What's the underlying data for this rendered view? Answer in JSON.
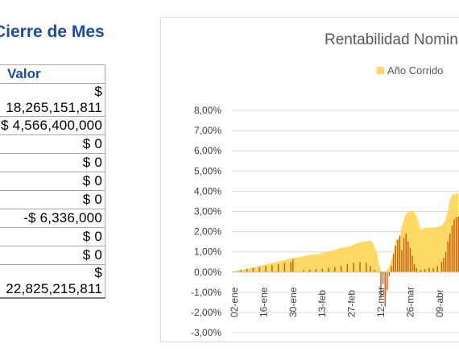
{
  "sheet": {
    "title": "Cierre de Mes",
    "table": {
      "header": "Valor",
      "rows": [
        "$ 18,265,151,811",
        "$ 4,566,400,000",
        "$ 0",
        "$ 0",
        "$ 0",
        "$ 0",
        "-$ 6,336,000",
        "$ 0",
        "$ 0",
        "$ 22,825,215,811"
      ]
    }
  },
  "chart_data": {
    "type": "area",
    "title": "Rentabilidad Nominal",
    "legend": {
      "placement": "top",
      "entries": [
        {
          "name": "Año Corrido",
          "color": "#ffd966"
        }
      ]
    },
    "y_ticks": [
      "8,00%",
      "7,00%",
      "6,00%",
      "5,00%",
      "4,00%",
      "3,00%",
      "2,00%",
      "1,00%",
      "0,00%",
      "-1,00%",
      "-2,00%",
      "-3,00%"
    ],
    "ylim": [
      -3,
      8
    ],
    "x_ticks": [
      "02-ene",
      "16-ene",
      "30-ene",
      "13-feb",
      "27-feb",
      "12-mar",
      "26-mar",
      "09-abr"
    ],
    "grid": true,
    "series": [
      {
        "name": "Año Corrido",
        "kind": "area",
        "color": "#ffd966",
        "x_days": [
          0,
          5,
          10,
          14,
          18,
          22,
          25,
          28,
          29,
          32,
          36,
          40,
          44,
          48,
          51,
          54,
          57,
          59,
          62,
          65,
          66,
          68,
          69,
          70,
          71,
          72,
          73,
          74,
          75,
          76,
          77,
          78,
          79,
          80,
          82,
          85,
          87,
          89,
          92,
          96,
          99,
          100,
          101,
          102,
          103,
          104,
          105,
          107
        ],
        "values": [
          0.05,
          0.15,
          0.25,
          0.35,
          0.45,
          0.55,
          0.62,
          0.7,
          0.72,
          0.75,
          0.85,
          0.9,
          1.0,
          1.1,
          1.2,
          1.25,
          1.35,
          1.45,
          1.5,
          1.55,
          1.45,
          1.0,
          0.4,
          0.1,
          -0.1,
          -0.05,
          0.1,
          0.3,
          0.6,
          0.9,
          1.6,
          1.6,
          1.7,
          2.3,
          2.9,
          3.05,
          2.8,
          2.1,
          2.2,
          2.2,
          2.3,
          2.45,
          2.6,
          3.1,
          3.6,
          3.8,
          3.85,
          3.9
        ]
      },
      {
        "name": "",
        "kind": "bar",
        "color": "#c55a11",
        "x_days": [
          0,
          3,
          6,
          9,
          12,
          15,
          18,
          21,
          24,
          27,
          28,
          30,
          33,
          36,
          39,
          42,
          45,
          48,
          51,
          54,
          57,
          60,
          63,
          65,
          67,
          69,
          70,
          71,
          72,
          73,
          74,
          75,
          76,
          77,
          78,
          79,
          80,
          81,
          82,
          83,
          84,
          85,
          86,
          87,
          88,
          89,
          91,
          93,
          95,
          97,
          99,
          100,
          101,
          102,
          103,
          104,
          105,
          106,
          107
        ],
        "values": [
          0.02,
          0.1,
          0.15,
          0.2,
          0.25,
          0.3,
          0.35,
          0.4,
          0.45,
          0.5,
          0.62,
          0.0,
          0.1,
          0.12,
          0.15,
          0.18,
          0.2,
          0.25,
          0.3,
          0.4,
          0.45,
          0.5,
          0.45,
          0.3,
          0.1,
          0.0,
          -1.3,
          -0.6,
          -1.7,
          -0.9,
          -0.2,
          0.3,
          0.9,
          1.3,
          1.6,
          1.8,
          1.1,
          1.7,
          1.9,
          1.5,
          1.2,
          0.8,
          0.4,
          0.2,
          0.0,
          0.1,
          0.15,
          0.2,
          0.2,
          0.3,
          0.5,
          0.7,
          1.0,
          1.5,
          1.9,
          2.3,
          2.6,
          2.7,
          2.75
        ]
      }
    ]
  }
}
